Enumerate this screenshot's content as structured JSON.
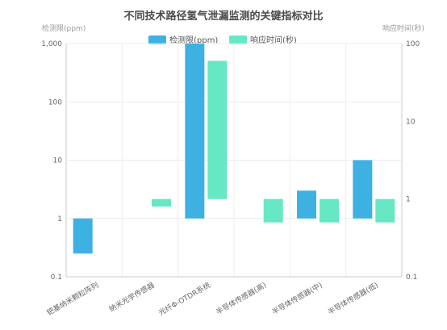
{
  "chart_data": {
    "type": "bar",
    "title": "不同技术路径氢气泄漏监测的关键指标对比",
    "categories": [
      "钯基纳米颗粒阵列",
      "纳米光学传感器",
      "光纤Φ-OTDR系统",
      "半导体传感器(高)",
      "半导体传感器(中)",
      "半导体传感器(低)"
    ],
    "y_left": {
      "label": "检测限(ppm)",
      "scale": "log",
      "range": [
        0.1,
        1000
      ],
      "ticks": [
        "0.1",
        "1",
        "10",
        "100",
        "1,000"
      ]
    },
    "y_right": {
      "label": "响应时间(秒)",
      "scale": "log",
      "range": [
        0.1,
        100
      ],
      "ticks": [
        "0.1",
        "1",
        "10",
        "100"
      ]
    },
    "legend": {
      "position": "top",
      "items": [
        "检测限(ppm)",
        "响应时间(秒)"
      ]
    },
    "colors": {
      "detection": "#3eb1e3",
      "response": "#66e8c4"
    },
    "series": [
      {
        "name": "检测限(ppm)",
        "axis": "left",
        "color": "#3eb1e3",
        "ranges": [
          [
            0.25,
            1
          ],
          null,
          [
            1,
            1000
          ],
          null,
          [
            1,
            3
          ],
          [
            1,
            10
          ]
        ]
      },
      {
        "name": "响应时间(秒)",
        "axis": "right",
        "color": "#66e8c4",
        "ranges": [
          null,
          [
            0.8,
            1
          ],
          [
            1,
            60
          ],
          [
            0.5,
            1
          ],
          [
            0.5,
            1
          ],
          [
            0.5,
            1
          ]
        ]
      }
    ],
    "grid": true
  }
}
